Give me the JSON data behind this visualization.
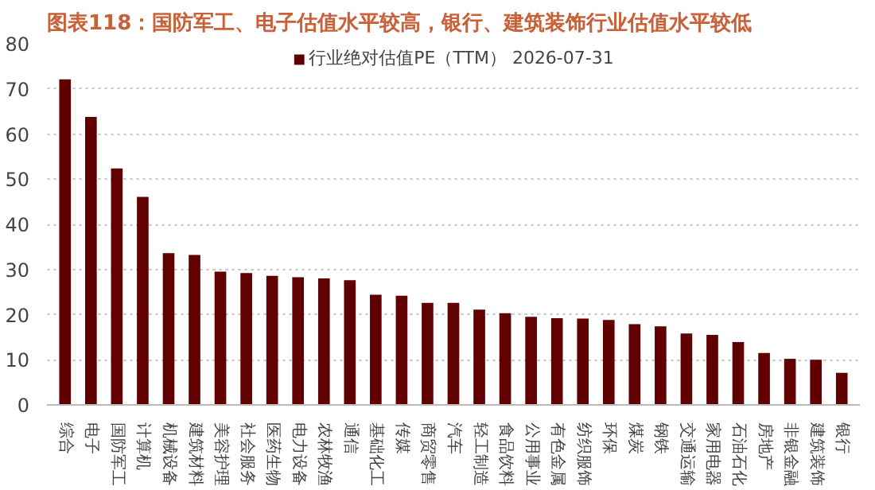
{
  "chart_data": {
    "type": "bar",
    "title": "图表118：国防军工、电子估值水平较高，银行、建筑装饰行业估值水平较低",
    "categories": [
      "综合",
      "电子",
      "国防军工",
      "计算机",
      "机械设备",
      "建筑材料",
      "美容护理",
      "社会服务",
      "医药生物",
      "电力设备",
      "农林牧渔",
      "通信",
      "基础化工",
      "传媒",
      "商贸零售",
      "汽车",
      "轻工制造",
      "食品饮料",
      "公用事业",
      "有色金属",
      "纺织服饰",
      "环保",
      "煤炭",
      "钢铁",
      "交通运输",
      "家用电器",
      "石油石化",
      "房地产",
      "非银金融",
      "建筑装饰",
      "银行"
    ],
    "series": [
      {
        "name": "行业绝对估值PE（TTM） 2026-07-31",
        "color": "#600000",
        "values": [
          72.1,
          63.8,
          52.4,
          46.1,
          33.6,
          33.2,
          29.5,
          29.2,
          28.6,
          28.3,
          28.0,
          27.6,
          24.4,
          24.2,
          22.6,
          22.6,
          21.1,
          20.3,
          19.5,
          19.2,
          19.1,
          18.8,
          17.9,
          17.4,
          15.8,
          15.5,
          13.9,
          11.5,
          10.2,
          10.0,
          7.1
        ]
      }
    ],
    "ylim": [
      0,
      80
    ],
    "yticks": [
      0,
      10,
      20,
      30,
      40,
      50,
      60,
      70,
      80
    ],
    "grid": "y",
    "legend": "top"
  }
}
